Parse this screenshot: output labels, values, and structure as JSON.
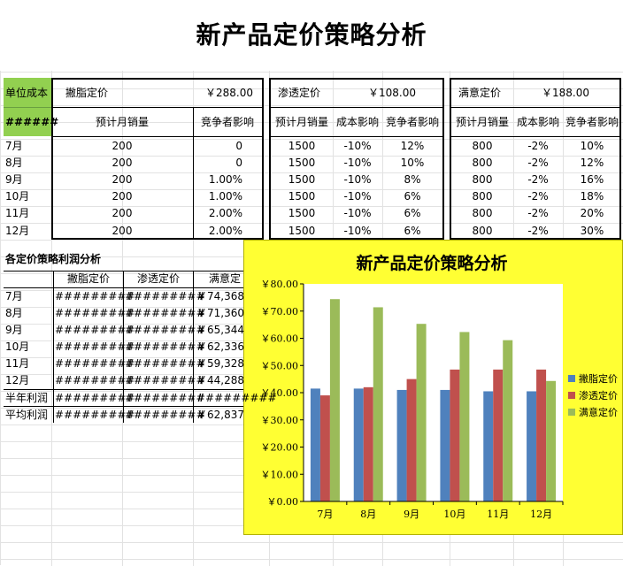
{
  "title": "新产品定价策略分析",
  "unit_cost_label": "单位成本",
  "unit_cost_value": "######",
  "skim": {
    "label": "撇脂定价",
    "price": "￥288.00",
    "col_sales": "预计月销量",
    "col_comp": "竞争者影响"
  },
  "pen": {
    "label": "渗透定价",
    "price": "￥108.00",
    "col_sales": "预计月销量",
    "col_cost": "成本影响",
    "col_comp": "竞争者影响"
  },
  "sat": {
    "label": "满意定价",
    "price": "￥188.00",
    "col_sales": "预计月销量",
    "col_cost": "成本影响",
    "col_comp": "竞争者影响"
  },
  "months": [
    "7月",
    "8月",
    "9月",
    "10月",
    "11月",
    "12月"
  ],
  "skim_rows": [
    {
      "sales": "200",
      "comp": "0"
    },
    {
      "sales": "200",
      "comp": "0"
    },
    {
      "sales": "200",
      "comp": "1.00%"
    },
    {
      "sales": "200",
      "comp": "1.00%"
    },
    {
      "sales": "200",
      "comp": "2.00%"
    },
    {
      "sales": "200",
      "comp": "2.00%"
    }
  ],
  "pen_rows": [
    {
      "sales": "1500",
      "cost": "-10%",
      "comp": "12%"
    },
    {
      "sales": "1500",
      "cost": "-10%",
      "comp": "10%"
    },
    {
      "sales": "1500",
      "cost": "-10%",
      "comp": "8%"
    },
    {
      "sales": "1500",
      "cost": "-10%",
      "comp": "6%"
    },
    {
      "sales": "1500",
      "cost": "-10%",
      "comp": "6%"
    },
    {
      "sales": "1500",
      "cost": "-10%",
      "comp": "6%"
    }
  ],
  "sat_rows": [
    {
      "sales": "800",
      "cost": "-2%",
      "comp": "10%"
    },
    {
      "sales": "800",
      "cost": "-2%",
      "comp": "12%"
    },
    {
      "sales": "800",
      "cost": "-2%",
      "comp": "16%"
    },
    {
      "sales": "800",
      "cost": "-2%",
      "comp": "18%"
    },
    {
      "sales": "800",
      "cost": "-2%",
      "comp": "20%"
    },
    {
      "sales": "800",
      "cost": "-2%",
      "comp": "30%"
    }
  ],
  "profit": {
    "heading": "各定价策略利润分析",
    "cols": [
      "撇脂定价",
      "渗透定价",
      "满意定"
    ],
    "rows": [
      {
        "label": "7月",
        "a": "#########",
        "b": "#########",
        "c": "￥74,368"
      },
      {
        "label": "8月",
        "a": "#########",
        "b": "#########",
        "c": "￥71,360"
      },
      {
        "label": "9月",
        "a": "#########",
        "b": "#########",
        "c": "￥65,344"
      },
      {
        "label": "10月",
        "a": "#########",
        "b": "#########",
        "c": "￥62,336"
      },
      {
        "label": "11月",
        "a": "#########",
        "b": "#########",
        "c": "￥59,328"
      },
      {
        "label": "12月",
        "a": "#########",
        "b": "#########",
        "c": "￥44,288"
      },
      {
        "label": "半年利润",
        "a": "#########",
        "b": "#########",
        "c": "#########"
      },
      {
        "label": "平均利润",
        "a": "#########",
        "b": "#########",
        "c": "￥62,837"
      }
    ]
  },
  "chart_data": {
    "type": "bar",
    "title": "新产品定价策略分析",
    "categories": [
      "7月",
      "8月",
      "9月",
      "10月",
      "11月",
      "12月"
    ],
    "series": [
      {
        "name": "撇脂定价",
        "color": "#4f81bd",
        "values": [
          41.5,
          41.5,
          41.0,
          41.0,
          40.5,
          40.5
        ]
      },
      {
        "name": "渗透定价",
        "color": "#c0504d",
        "values": [
          39.0,
          42.0,
          45.0,
          48.5,
          48.5,
          48.5
        ]
      },
      {
        "name": "满意定价",
        "color": "#9bbb59",
        "values": [
          74.4,
          71.4,
          65.3,
          62.3,
          59.3,
          44.3
        ]
      }
    ],
    "ylim": [
      0,
      80
    ],
    "yticks": [
      "￥0.00",
      "￥10.00",
      "￥20.00",
      "￥30.00",
      "￥40.00",
      "￥50.00",
      "￥60.00",
      "￥70.00",
      "￥80.00"
    ],
    "legend": "right",
    "background": "#ffff33"
  }
}
